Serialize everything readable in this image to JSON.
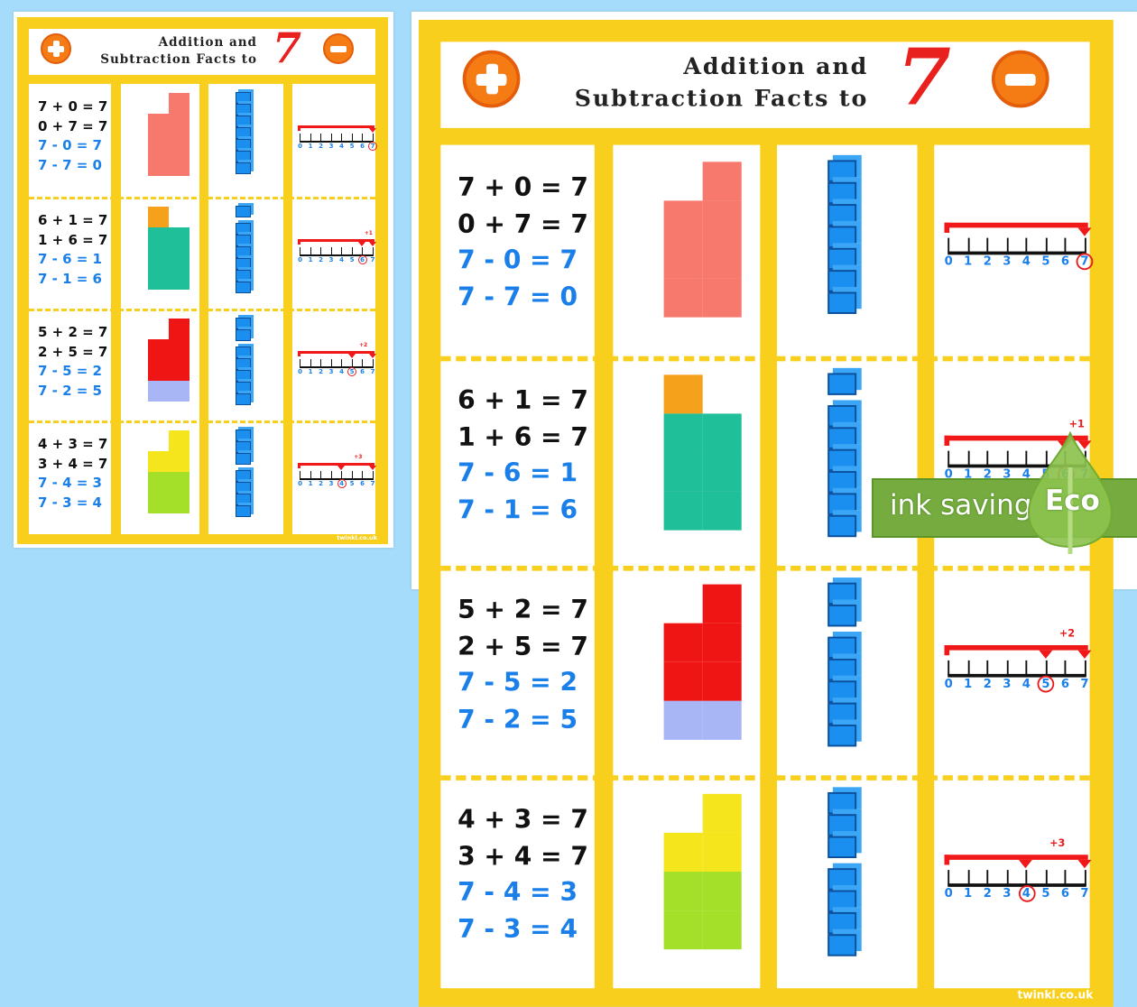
{
  "title": {
    "line1": "Addition and",
    "line2": "Subtraction Facts to",
    "number": "7"
  },
  "icons": {
    "plus": "plus-circle-icon",
    "minus": "minus-circle-icon"
  },
  "colors": {
    "frame": "#f9cf1d",
    "background": "#a6dcfb",
    "accent_orange": "#f57c14",
    "number_red": "#e8201e",
    "equation_blue": "#1a7fe8",
    "cube_blue": "#1b8ff0"
  },
  "number_line_labels": [
    "0",
    "1",
    "2",
    "3",
    "4",
    "5",
    "6",
    "7"
  ],
  "rows": [
    {
      "equations": [
        "7 + 0 = 7",
        "0 + 7 = 7",
        "7 - 0 = 7",
        "7 - 7 = 0"
      ],
      "counters": [
        {
          "count": 7,
          "color": "#f7786c"
        }
      ],
      "lone_counter_side": "right",
      "cubes": [
        7
      ],
      "jump_label": "",
      "circled": 7
    },
    {
      "equations": [
        "6 + 1 = 7",
        "1 + 6 = 7",
        "7 - 6 = 1",
        "7 - 1 = 6"
      ],
      "counters": [
        {
          "count": 1,
          "color": "#f6a11b"
        },
        {
          "count": 6,
          "color": "#1fbf9a"
        }
      ],
      "lone_counter_side": "left",
      "cubes": [
        1,
        6
      ],
      "jump_label": "+1",
      "circled": 6
    },
    {
      "equations": [
        "5 + 2 = 7",
        "2 + 5 = 7",
        "7 - 5 = 2",
        "7 - 2 = 5"
      ],
      "counters": [
        {
          "count": 5,
          "color": "#f01515"
        },
        {
          "count": 2,
          "color": "#a9b6f6"
        }
      ],
      "lone_counter_side": "right",
      "cubes": [
        2,
        5
      ],
      "jump_label": "+2",
      "circled": 5
    },
    {
      "equations": [
        "4 + 3 = 7",
        "3 + 4 = 7",
        "7 - 4 = 3",
        "7 - 3 = 4"
      ],
      "counters": [
        {
          "count": 3,
          "color": "#f5e51c"
        },
        {
          "count": 4,
          "color": "#a4e02a"
        }
      ],
      "lone_counter_side": "right",
      "cubes": [
        3,
        4
      ],
      "jump_label": "+3",
      "circled": 4
    }
  ],
  "footer": "twinkl.co.uk",
  "badge": {
    "text": "ink saving",
    "eco": "Eco"
  }
}
